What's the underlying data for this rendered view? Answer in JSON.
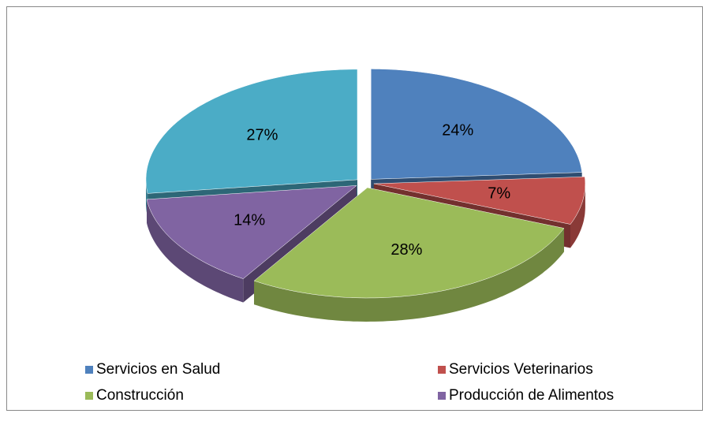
{
  "chart_data": {
    "type": "pie",
    "categories": [
      "Servicios en Salud",
      "Servicios Veterinarios",
      "Construcción",
      "Producción de Alimentos",
      null
    ],
    "values": [
      24,
      7,
      28,
      14,
      27
    ],
    "value_labels": [
      "24%",
      "7%",
      "28%",
      "14%",
      "27%"
    ],
    "colors": [
      "#4f81bd",
      "#c0504d",
      "#9bbb59",
      "#8064a2",
      "#4bacc6"
    ],
    "legend": "bottom"
  }
}
